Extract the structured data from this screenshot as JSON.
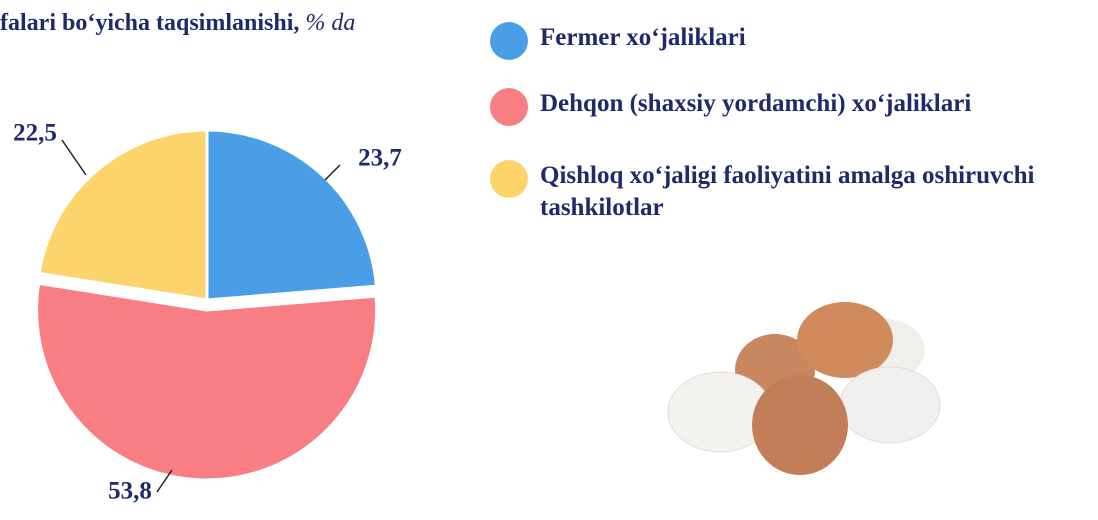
{
  "chart_data": {
    "type": "pie",
    "title": "falari bo‘yicha taqsimlanishi,",
    "unit": "% da",
    "categories": [
      "Fermer xo‘jaliklari",
      "Dehqon (shaxsiy yordamchi) xo‘jaliklari",
      "Qishloq xo‘jaligi faoliyatini amalga oshiruvchi tashkilotlar"
    ],
    "values": [
      23.7,
      53.8,
      22.5
    ],
    "value_labels": [
      "23,7",
      "53,8",
      "22,5"
    ],
    "colors": [
      "#4a9ee8",
      "#f87e83",
      "#fdd36b"
    ]
  }
}
